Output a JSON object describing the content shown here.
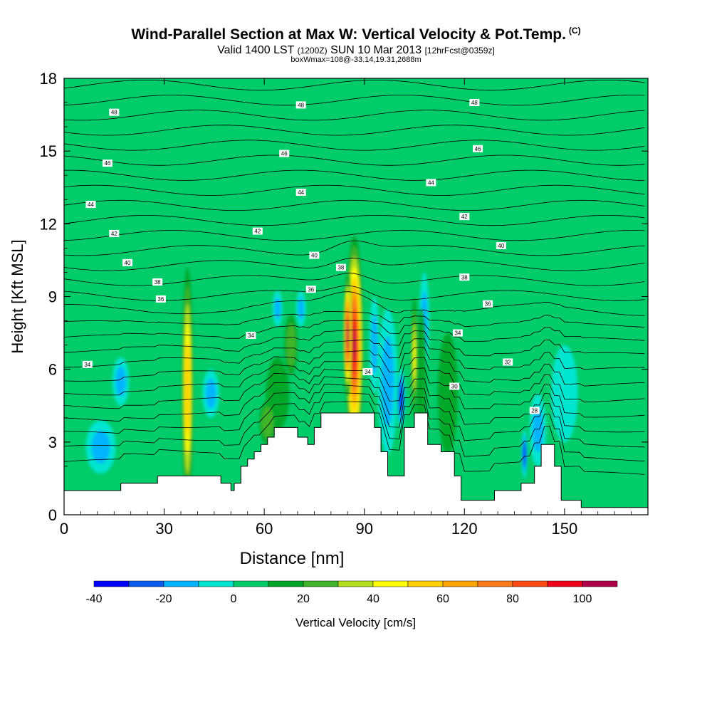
{
  "title": {
    "main": "Wind-Parallel Section at Max W: Vertical Velocity & Pot.Temp.",
    "copyright": "(C)",
    "valid_prefix": "Valid 1400 LST",
    "valid_utc": "(1200Z)",
    "valid_date": "SUN 10 Mar 2013",
    "forecast": "[12hrFcst@0359z]",
    "box_info": "boxWmax=108@-33.14,19.31,2688m"
  },
  "chart_data": {
    "type": "heatmap",
    "xlabel": "Distance [nm]",
    "ylabel": "Height [Kft MSL]",
    "xlim": [
      0,
      175
    ],
    "ylim": [
      0,
      18
    ],
    "xticks": [
      "0",
      "30",
      "60",
      "90",
      "120",
      "150"
    ],
    "yticks": [
      "0",
      "3",
      "6",
      "9",
      "12",
      "15",
      "18"
    ],
    "colorbar": {
      "label": "Vertical Velocity [cm/s]",
      "ticks": [
        "-40",
        "-20",
        "0",
        "20",
        "40",
        "60",
        "80",
        "100"
      ],
      "levels": [
        -40,
        -30,
        -20,
        -10,
        0,
        10,
        20,
        30,
        40,
        50,
        60,
        70,
        80,
        90,
        100,
        110
      ],
      "colors": [
        "#0000ff",
        "#0a5cf0",
        "#00b4ff",
        "#00e5d0",
        "#00cc6a",
        "#00a82a",
        "#3fb52a",
        "#b5e01e",
        "#ffff00",
        "#ffd000",
        "#ffa500",
        "#ff7a1a",
        "#ff4a14",
        "#f0001a",
        "#b0004a"
      ]
    },
    "terrain_kft": [
      [
        0,
        1.0
      ],
      [
        17,
        1.0
      ],
      [
        17,
        1.3
      ],
      [
        28,
        1.3
      ],
      [
        28,
        1.6
      ],
      [
        47,
        1.6
      ],
      [
        47,
        1.3
      ],
      [
        50,
        1.3
      ],
      [
        50,
        1.0
      ],
      [
        51,
        1.0
      ],
      [
        51,
        1.3
      ],
      [
        53,
        1.3
      ],
      [
        53,
        2.0
      ],
      [
        55,
        2.0
      ],
      [
        55,
        2.3
      ],
      [
        57,
        2.3
      ],
      [
        57,
        2.6
      ],
      [
        59,
        2.6
      ],
      [
        59,
        2.9
      ],
      [
        61,
        2.9
      ],
      [
        61,
        3.2
      ],
      [
        63,
        3.2
      ],
      [
        63,
        3.6
      ],
      [
        70,
        3.6
      ],
      [
        70,
        3.2
      ],
      [
        73,
        3.2
      ],
      [
        73,
        2.9
      ],
      [
        75,
        2.9
      ],
      [
        75,
        3.6
      ],
      [
        77,
        3.6
      ],
      [
        77,
        4.2
      ],
      [
        93,
        4.2
      ],
      [
        93,
        3.6
      ],
      [
        95,
        3.6
      ],
      [
        95,
        2.6
      ],
      [
        97,
        2.6
      ],
      [
        97,
        1.6
      ],
      [
        102,
        1.6
      ],
      [
        102,
        3.6
      ],
      [
        105,
        3.6
      ],
      [
        105,
        4.2
      ],
      [
        109,
        4.2
      ],
      [
        109,
        2.9
      ],
      [
        113,
        2.9
      ],
      [
        113,
        2.6
      ],
      [
        117,
        2.6
      ],
      [
        117,
        1.6
      ],
      [
        119,
        1.6
      ],
      [
        119,
        0.6
      ],
      [
        129,
        0.6
      ],
      [
        129,
        1.0
      ],
      [
        137,
        1.0
      ],
      [
        137,
        1.3
      ],
      [
        141,
        1.3
      ],
      [
        141,
        2.0
      ],
      [
        143,
        2.0
      ],
      [
        143,
        2.9
      ],
      [
        147,
        2.9
      ],
      [
        147,
        2.0
      ],
      [
        149,
        2.0
      ],
      [
        149,
        0.6
      ],
      [
        155,
        0.6
      ],
      [
        155,
        0.3
      ],
      [
        175,
        0.3
      ]
    ],
    "w_cells": [
      {
        "x": 15,
        "y": 16,
        "w": 175,
        "h": 4.5,
        "v": 2
      },
      {
        "x": 35,
        "y": 15,
        "w": 12,
        "h": 7,
        "v": 8
      },
      {
        "x": 75,
        "y": 15,
        "w": 12,
        "h": 7,
        "v": 8
      },
      {
        "x": 100,
        "y": 16,
        "w": 14,
        "h": 6,
        "v": 8
      },
      {
        "x": 166,
        "y": 13,
        "w": 14,
        "h": 8,
        "v": 8
      },
      {
        "x": 8,
        "y": 9,
        "w": 8,
        "h": 5,
        "v": 8
      },
      {
        "x": 130,
        "y": 8,
        "w": 10,
        "h": 8,
        "v": 8
      },
      {
        "x": 11,
        "y": 2.8,
        "w": 9,
        "h": 2.2,
        "v": -15
      },
      {
        "x": 17,
        "y": 5.5,
        "w": 5,
        "h": 2,
        "v": -12
      },
      {
        "x": 44,
        "y": 5,
        "w": 5,
        "h": 2,
        "v": -12
      },
      {
        "x": 64,
        "y": 5,
        "w": 7,
        "h": 3,
        "v": 14
      },
      {
        "x": 61,
        "y": 3.8,
        "w": 5,
        "h": 1.8,
        "v": 28
      },
      {
        "x": 68,
        "y": 7,
        "w": 4,
        "h": 2.5,
        "v": 22
      },
      {
        "x": 64,
        "y": 8.5,
        "w": 3,
        "h": 1.5,
        "v": -12
      },
      {
        "x": 71,
        "y": 8.5,
        "w": 3,
        "h": 1.5,
        "v": -12
      },
      {
        "x": 97,
        "y": 5.5,
        "w": 6,
        "h": 6,
        "v": -20
      },
      {
        "x": 101,
        "y": 4.8,
        "w": 2.5,
        "h": 2.5,
        "v": -38
      },
      {
        "x": 93,
        "y": 7,
        "w": 3,
        "h": 4,
        "v": -15
      },
      {
        "x": 108,
        "y": 8,
        "w": 3,
        "h": 4,
        "v": -12
      },
      {
        "x": 107,
        "y": 5.5,
        "w": 3,
        "h": 6,
        "v": 12
      },
      {
        "x": 115,
        "y": 5,
        "w": 6,
        "h": 5,
        "v": 12
      },
      {
        "x": 142,
        "y": 3.5,
        "w": 5,
        "h": 3,
        "v": -15
      },
      {
        "x": 138,
        "y": 2.5,
        "w": 1.8,
        "h": 2,
        "v": -35
      },
      {
        "x": 130,
        "y": 4,
        "w": 8,
        "h": 4,
        "v": 8
      },
      {
        "x": 150,
        "y": 5,
        "w": 8,
        "h": 4,
        "v": -8
      },
      {
        "x": 165,
        "y": 3,
        "w": 18,
        "h": 5,
        "v": 8
      },
      {
        "x": 37,
        "y": 5.2,
        "w": 3.5,
        "h": 10,
        "v": 55
      },
      {
        "x": 87,
        "y": 7.0,
        "w": 5.5,
        "h": 9,
        "v": 100
      },
      {
        "x": 85,
        "y": 7.4,
        "w": 2.5,
        "h": 5,
        "v": 108
      },
      {
        "x": 105,
        "y": 6.5,
        "w": 2,
        "h": 5,
        "v": 40
      }
    ],
    "theta_labels": [
      {
        "x": 15,
        "y": 16.6,
        "t": "48"
      },
      {
        "x": 71,
        "y": 16.9,
        "t": "48"
      },
      {
        "x": 123,
        "y": 17.0,
        "t": "48"
      },
      {
        "x": 66,
        "y": 14.9,
        "t": "46"
      },
      {
        "x": 124,
        "y": 15.1,
        "t": "46"
      },
      {
        "x": 13,
        "y": 14.5,
        "t": "46"
      },
      {
        "x": 71,
        "y": 13.3,
        "t": "44"
      },
      {
        "x": 110,
        "y": 13.7,
        "t": "44"
      },
      {
        "x": 8,
        "y": 12.8,
        "t": "44"
      },
      {
        "x": 58,
        "y": 11.7,
        "t": "42"
      },
      {
        "x": 120,
        "y": 12.3,
        "t": "42"
      },
      {
        "x": 15,
        "y": 11.6,
        "t": "42"
      },
      {
        "x": 75,
        "y": 10.7,
        "t": "40"
      },
      {
        "x": 131,
        "y": 11.1,
        "t": "40"
      },
      {
        "x": 19,
        "y": 10.4,
        "t": "40"
      },
      {
        "x": 83,
        "y": 10.2,
        "t": "38"
      },
      {
        "x": 120,
        "y": 9.8,
        "t": "38"
      },
      {
        "x": 28,
        "y": 9.6,
        "t": "38"
      },
      {
        "x": 74,
        "y": 9.3,
        "t": "36"
      },
      {
        "x": 127,
        "y": 8.7,
        "t": "36"
      },
      {
        "x": 29,
        "y": 8.9,
        "t": "36"
      },
      {
        "x": 56,
        "y": 7.4,
        "t": "34"
      },
      {
        "x": 118,
        "y": 7.5,
        "t": "34"
      },
      {
        "x": 91,
        "y": 5.9,
        "t": "34"
      },
      {
        "x": 7,
        "y": 6.2,
        "t": "34"
      },
      {
        "x": 133,
        "y": 6.3,
        "t": "32"
      },
      {
        "x": 117,
        "y": 5.3,
        "t": "30"
      },
      {
        "x": 141,
        "y": 4.3,
        "t": "28"
      }
    ]
  }
}
